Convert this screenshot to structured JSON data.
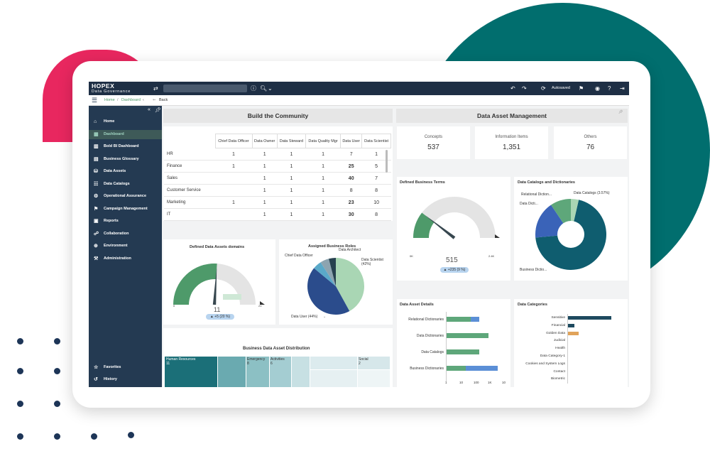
{
  "topbar": {
    "brand": "HOPEX",
    "brand_sub": "Data Governance",
    "autosaved": "Autosaved"
  },
  "breadcrumb": {
    "home": "Home",
    "sep": "/",
    "current": "Dashboard",
    "back": "Back"
  },
  "sidebar": {
    "items": [
      {
        "label": "Home",
        "icon": "home-icon"
      },
      {
        "label": "Dashboard",
        "icon": "dashboard-icon",
        "active": true
      },
      {
        "label": "Bold BI Dashboard",
        "icon": "chart-icon"
      },
      {
        "label": "Business Glossary",
        "icon": "glossary-icon"
      },
      {
        "label": "Data Assets",
        "icon": "data-assets-icon"
      },
      {
        "label": "Data Catalogs",
        "icon": "catalog-icon"
      },
      {
        "label": "Operational Assurance",
        "icon": "assurance-icon"
      },
      {
        "label": "Campaign Management",
        "icon": "campaign-icon"
      },
      {
        "label": "Reports",
        "icon": "reports-icon"
      },
      {
        "label": "Collaboration",
        "icon": "collaboration-icon"
      },
      {
        "label": "Environment",
        "icon": "environment-icon"
      },
      {
        "label": "Administration",
        "icon": "administration-icon"
      }
    ],
    "bottom": [
      {
        "label": "Favorites",
        "icon": "star-icon"
      },
      {
        "label": "History",
        "icon": "history-icon"
      }
    ]
  },
  "community": {
    "title": "Build the Community",
    "columns": [
      "Chief Data Officer",
      "Data Owner",
      "Data Steward",
      "Data Quality Mgr",
      "Data User",
      "Data Scientist"
    ],
    "rows": [
      {
        "label": "HR",
        "cells": [
          "1",
          "1",
          "1",
          "1",
          "7",
          "1"
        ]
      },
      {
        "label": "Finance",
        "cells": [
          "1",
          "1",
          "1",
          "1",
          "25",
          "5"
        ]
      },
      {
        "label": "Sales",
        "cells": [
          "",
          "1",
          "1",
          "1",
          "40",
          "7"
        ]
      },
      {
        "label": "Customer Service",
        "cells": [
          "",
          "1",
          "1",
          "1",
          "8",
          "8"
        ]
      },
      {
        "label": "Marketing",
        "cells": [
          "1",
          "1",
          "1",
          "1",
          "23",
          "10"
        ]
      },
      {
        "label": "IT",
        "cells": [
          "",
          "1",
          "1",
          "1",
          "30",
          "8"
        ]
      }
    ]
  },
  "domains_gauge": {
    "title": "Defined Data Assets  domains",
    "value": "11",
    "min": "0",
    "max": "21",
    "badge": "+5 (20 %)",
    "fraction": 0.52
  },
  "roles_pie": {
    "title": "Assigned Business Roles",
    "labels": {
      "cdo": "Chief Data Officer",
      "arch": "Data Architect",
      "sci": "Data Scientist\n(42%)",
      "user": "Data User (44%)"
    }
  },
  "distribution": {
    "title": "Business Data Asset Distribution",
    "tiles": {
      "hr": "Human Resources",
      "hr_val": "11",
      "emergency": "Emergency",
      "emergency_val": "8",
      "activities": "Activities",
      "activities_val": "6",
      "social": "Social",
      "social_val": "2"
    }
  },
  "asset_mgmt": {
    "title": "Data Asset Management",
    "kpis": [
      {
        "label": "Concepts",
        "value": "537"
      },
      {
        "label": "Information Items",
        "value": "1,351"
      },
      {
        "label": "Others",
        "value": "76"
      }
    ]
  },
  "terms_gauge": {
    "title": "Defined Business Terms",
    "value": "515",
    "min": "0K",
    "max": "2.4K",
    "badge": "+235 (9 %)",
    "fraction": 0.21
  },
  "catalogs_donut": {
    "title": "Data Catalogs and Dictionaries",
    "labels": {
      "rel": "Relational Diction...",
      "dict": "Data Dicti...",
      "cat": "Data Catalogs (3.57%)",
      "bus": "Business Dictio..."
    }
  },
  "asset_details": {
    "title": "Data Asset Details",
    "ticks": [
      "1",
      "10",
      "100",
      "1K",
      "10"
    ],
    "bars": [
      {
        "label": "Relational Dictionaries",
        "green": 0.42,
        "blue": 0.16
      },
      {
        "label": "Data Dictionaries",
        "green": 0.74,
        "blue": 0
      },
      {
        "label": "Data Catalogs",
        "green": 0.57,
        "blue": 0
      },
      {
        "label": "Business Dictionaries",
        "green": 0.34,
        "blue": 0.56
      }
    ]
  },
  "categories": {
    "title": "Data Categories",
    "items": [
      {
        "label": "Sensitive",
        "value": 0.87,
        "color": "#1e4a5f"
      },
      {
        "label": "Financial",
        "value": 0.13,
        "color": "#1e4a5f"
      },
      {
        "label": "Golden Data",
        "value": 0.22,
        "color": "#e0a35a"
      },
      {
        "label": "Judicial",
        "value": 0,
        "color": "#1e4a5f"
      },
      {
        "label": "Health",
        "value": 0,
        "color": "#1e4a5f"
      },
      {
        "label": "Data Category-1",
        "value": 0,
        "color": "#1e4a5f"
      },
      {
        "label": "Cookies and System Logs",
        "value": 0,
        "color": "#1e4a5f"
      },
      {
        "label": "Contact",
        "value": 0,
        "color": "#1e4a5f"
      },
      {
        "label": "Biometric",
        "value": 0,
        "color": "#1e4a5f"
      }
    ]
  },
  "colors": {
    "accent_green": "#4e9a6a",
    "teal": "#016e6e",
    "pink": "#e8275f",
    "navy": "#1e2f45"
  }
}
